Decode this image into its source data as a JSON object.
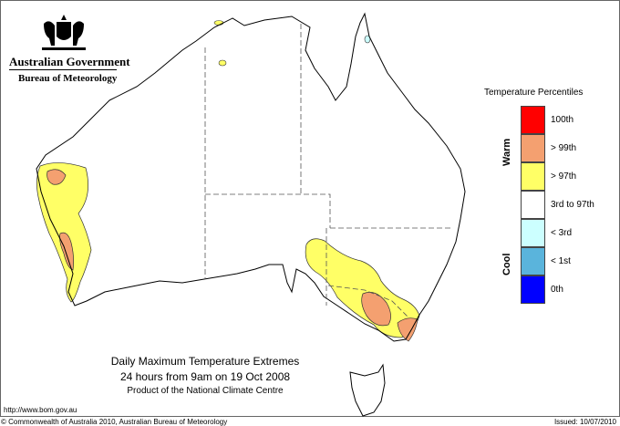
{
  "header": {
    "government": "Australian Government",
    "agency": "Bureau of Meteorology"
  },
  "legend": {
    "title": "Temperature Percentiles",
    "warm_label": "Warm",
    "cool_label": "Cool",
    "items": [
      {
        "label": "100th",
        "color": "#ff0000"
      },
      {
        "label": "> 99th",
        "color": "#f4a070"
      },
      {
        "label": "> 97th",
        "color": "#ffff66"
      },
      {
        "label": "3rd to 97th",
        "color": "#ffffff"
      },
      {
        "label": "< 3rd",
        "color": "#ccffff"
      },
      {
        "label": "< 1st",
        "color": "#5ab4dc"
      },
      {
        "label": "0th",
        "color": "#0000ff"
      }
    ]
  },
  "map": {
    "title": "Daily Maximum Temperature Extremes",
    "subtitle": "24 hours from 9am on 19 Oct 2008",
    "product": "Product of the National Climate Centre",
    "regions": [
      {
        "area": "south-west Western Australia coast",
        "category": "> 97th"
      },
      {
        "area": "south-west Western Australia inland patches",
        "category": "> 99th"
      },
      {
        "area": "south-east South Australia, NSW and Victoria",
        "category": "> 97th"
      },
      {
        "area": "northern Victoria and far south-east NSW",
        "category": "> 99th"
      },
      {
        "area": "northern Northern Territory spots",
        "category": "> 97th"
      },
      {
        "area": "far north Queensland spot",
        "category": "< 3rd"
      }
    ]
  },
  "footer": {
    "url": "http://www.bom.gov.au",
    "copyright": "© Commonwealth of Australia 2010, Australian Bureau of Meteorology",
    "issued": "Issued: 10/07/2010"
  }
}
